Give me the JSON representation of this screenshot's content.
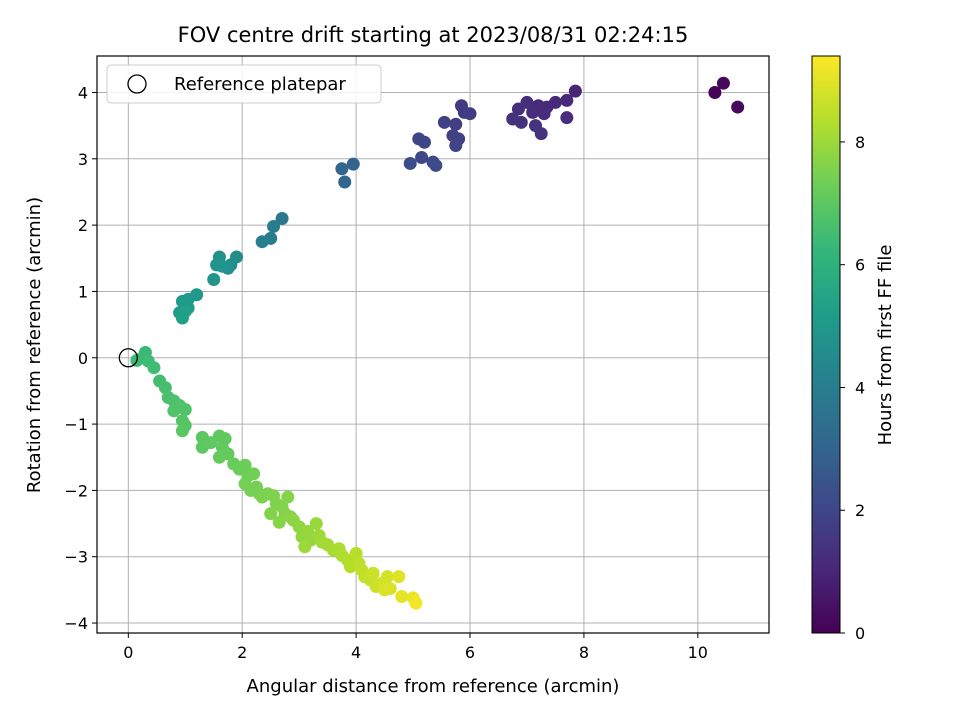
{
  "chart_data": {
    "type": "scatter",
    "title": "FOV centre drift starting at 2023/08/31 02:24:15",
    "xlabel": "Angular distance from reference (arcmin)",
    "ylabel": "Rotation from reference (arcmin)",
    "xlim": [
      -0.55,
      11.25
    ],
    "ylim": [
      -4.15,
      4.55
    ],
    "x_ticks": [
      0,
      2,
      4,
      6,
      8,
      10
    ],
    "y_ticks": [
      -4,
      -3,
      -2,
      -1,
      0,
      1,
      2,
      3,
      4
    ],
    "grid": true,
    "legend": {
      "placement": "upper-left",
      "entries": [
        {
          "label": "Reference platepar",
          "marker": "open-circle"
        }
      ]
    },
    "reference_point": {
      "x": 0,
      "y": 0
    },
    "colorbar": {
      "label": "Hours from first FF file",
      "colormap": "viridis",
      "range": [
        0,
        9.4
      ],
      "ticks": [
        0,
        2,
        4,
        6,
        8
      ],
      "stops": [
        "#440154",
        "#482878",
        "#3e4989",
        "#31688e",
        "#26828e",
        "#1f9e89",
        "#35b779",
        "#6ece58",
        "#b5de2b",
        "#fde725"
      ]
    },
    "series": [
      {
        "columns": [
          "x",
          "y",
          "hours"
        ],
        "points": [
          [
            10.3,
            4.0,
            0.1
          ],
          [
            10.45,
            4.14,
            0.2
          ],
          [
            10.7,
            3.78,
            0.3
          ],
          [
            7.85,
            4.02,
            1.0
          ],
          [
            7.7,
            3.88,
            1.05
          ],
          [
            7.5,
            3.85,
            1.1
          ],
          [
            7.35,
            3.78,
            1.1
          ],
          [
            7.2,
            3.8,
            1.15
          ],
          [
            7.1,
            3.7,
            1.2
          ],
          [
            7.3,
            3.68,
            1.2
          ],
          [
            7.0,
            3.85,
            1.25
          ],
          [
            6.85,
            3.75,
            1.3
          ],
          [
            6.75,
            3.6,
            1.35
          ],
          [
            6.9,
            3.55,
            1.35
          ],
          [
            7.15,
            3.5,
            1.4
          ],
          [
            7.25,
            3.38,
            1.4
          ],
          [
            7.7,
            3.62,
            1.2
          ],
          [
            5.85,
            3.8,
            1.6
          ],
          [
            5.9,
            3.7,
            1.65
          ],
          [
            6.0,
            3.68,
            1.7
          ],
          [
            5.75,
            3.52,
            1.75
          ],
          [
            5.55,
            3.55,
            1.8
          ],
          [
            5.7,
            3.35,
            1.8
          ],
          [
            5.8,
            3.3,
            1.85
          ],
          [
            5.75,
            3.2,
            1.9
          ],
          [
            5.1,
            3.3,
            1.95
          ],
          [
            5.2,
            3.25,
            2.0
          ],
          [
            5.15,
            3.02,
            2.05
          ],
          [
            5.35,
            2.95,
            2.1
          ],
          [
            5.4,
            2.9,
            2.15
          ],
          [
            4.95,
            2.93,
            2.2
          ],
          [
            3.95,
            2.92,
            3.0
          ],
          [
            3.75,
            2.85,
            3.05
          ],
          [
            3.8,
            2.65,
            3.1
          ],
          [
            2.7,
            2.1,
            3.8
          ],
          [
            2.55,
            1.98,
            3.9
          ],
          [
            2.5,
            1.8,
            3.95
          ],
          [
            2.35,
            1.75,
            4.0
          ],
          [
            1.9,
            1.52,
            4.6
          ],
          [
            1.8,
            1.4,
            4.65
          ],
          [
            1.75,
            1.35,
            4.7
          ],
          [
            1.6,
            1.52,
            4.75
          ],
          [
            1.55,
            1.4,
            4.8
          ],
          [
            1.65,
            1.38,
            4.85
          ],
          [
            1.5,
            1.18,
            4.9
          ],
          [
            1.2,
            0.95,
            5.0
          ],
          [
            1.05,
            0.88,
            5.05
          ],
          [
            0.95,
            0.85,
            5.1
          ],
          [
            1.05,
            0.75,
            5.15
          ],
          [
            0.9,
            0.68,
            5.2
          ],
          [
            0.95,
            0.6,
            5.25
          ],
          [
            1.0,
            0.7,
            5.3
          ],
          [
            0.3,
            0.08,
            6.3
          ],
          [
            0.25,
            0.0,
            6.35
          ],
          [
            0.15,
            -0.04,
            6.4
          ],
          [
            0.35,
            -0.05,
            6.45
          ],
          [
            0.45,
            -0.15,
            6.5
          ],
          [
            0.55,
            -0.35,
            6.55
          ],
          [
            0.65,
            -0.45,
            6.6
          ],
          [
            0.7,
            -0.6,
            6.65
          ],
          [
            0.8,
            -0.65,
            6.7
          ],
          [
            0.9,
            -0.72,
            6.75
          ],
          [
            1.0,
            -0.78,
            6.8
          ],
          [
            0.8,
            -0.8,
            6.8
          ],
          [
            0.95,
            -0.95,
            6.85
          ],
          [
            1.0,
            -1.02,
            6.9
          ],
          [
            0.95,
            -1.1,
            6.95
          ],
          [
            1.3,
            -1.2,
            7.0
          ],
          [
            1.3,
            -1.35,
            7.0
          ],
          [
            1.45,
            -1.28,
            7.05
          ],
          [
            1.6,
            -1.18,
            7.05
          ],
          [
            1.65,
            -1.35,
            7.1
          ],
          [
            1.7,
            -1.22,
            7.1
          ],
          [
            1.75,
            -1.45,
            7.15
          ],
          [
            1.6,
            -1.5,
            7.15
          ],
          [
            1.85,
            -1.6,
            7.2
          ],
          [
            1.95,
            -1.68,
            7.25
          ],
          [
            2.05,
            -1.62,
            7.25
          ],
          [
            2.1,
            -1.78,
            7.3
          ],
          [
            2.2,
            -1.75,
            7.35
          ],
          [
            2.05,
            -1.9,
            7.35
          ],
          [
            2.15,
            -2.0,
            7.4
          ],
          [
            2.25,
            -1.95,
            7.4
          ],
          [
            2.3,
            -2.05,
            7.45
          ],
          [
            2.35,
            -2.1,
            7.5
          ],
          [
            2.45,
            -2.05,
            7.5
          ],
          [
            2.55,
            -2.08,
            7.55
          ],
          [
            2.6,
            -2.2,
            7.55
          ],
          [
            2.7,
            -2.25,
            7.6
          ],
          [
            2.5,
            -2.35,
            7.6
          ],
          [
            2.75,
            -2.35,
            7.65
          ],
          [
            2.8,
            -2.1,
            7.65
          ],
          [
            2.85,
            -2.4,
            7.7
          ],
          [
            2.65,
            -2.48,
            7.7
          ],
          [
            2.9,
            -2.45,
            7.75
          ],
          [
            3.0,
            -2.55,
            7.8
          ],
          [
            3.05,
            -2.7,
            7.85
          ],
          [
            3.15,
            -2.62,
            7.9
          ],
          [
            3.2,
            -2.75,
            7.9
          ],
          [
            3.3,
            -2.5,
            7.95
          ],
          [
            3.35,
            -2.68,
            8.0
          ],
          [
            3.1,
            -2.85,
            8.0
          ],
          [
            3.4,
            -2.78,
            8.05
          ],
          [
            3.5,
            -2.82,
            8.1
          ],
          [
            3.6,
            -2.9,
            8.15
          ],
          [
            3.7,
            -2.88,
            8.2
          ],
          [
            3.75,
            -2.98,
            8.25
          ],
          [
            3.85,
            -3.05,
            8.3
          ],
          [
            3.9,
            -3.15,
            8.35
          ],
          [
            4.0,
            -2.95,
            8.4
          ],
          [
            4.05,
            -3.1,
            8.45
          ],
          [
            4.1,
            -3.2,
            8.5
          ],
          [
            4.15,
            -3.3,
            8.55
          ],
          [
            4.25,
            -3.35,
            8.6
          ],
          [
            4.3,
            -3.25,
            8.65
          ],
          [
            4.35,
            -3.45,
            8.7
          ],
          [
            4.45,
            -3.4,
            8.75
          ],
          [
            4.55,
            -3.3,
            8.8
          ],
          [
            4.6,
            -3.48,
            8.85
          ],
          [
            4.5,
            -3.5,
            8.9
          ],
          [
            4.75,
            -3.3,
            8.95
          ],
          [
            4.8,
            -3.6,
            9.05
          ],
          [
            5.0,
            -3.62,
            9.15
          ],
          [
            5.05,
            -3.7,
            9.25
          ]
        ]
      }
    ]
  }
}
